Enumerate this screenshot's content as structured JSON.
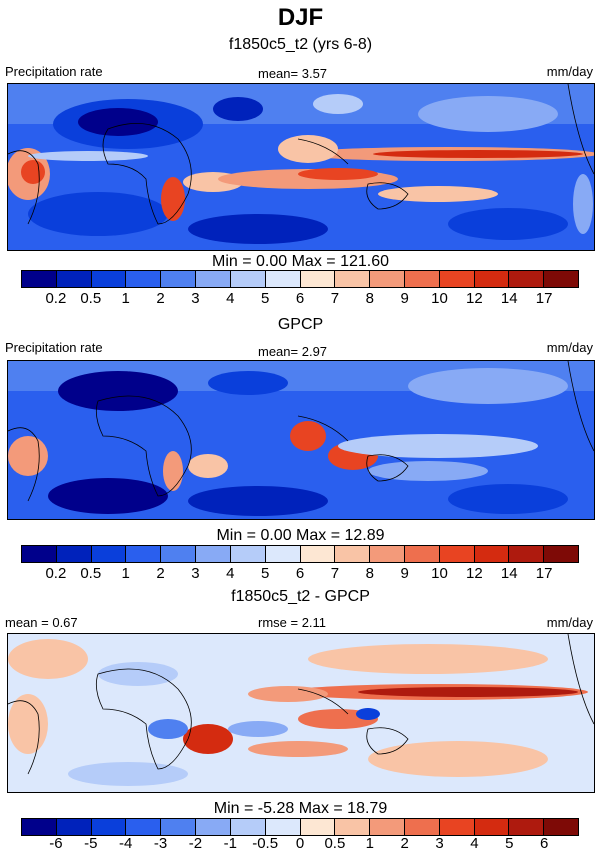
{
  "title": "DJF",
  "panels": [
    {
      "title": "f1850c5_t2 (yrs 6-8)",
      "left_label": "Precipitation rate",
      "center_label": "mean=   3.57",
      "right_label": "mm/day",
      "minmax": "Min =   0.00 Max = 121.60",
      "colorbar": {
        "colors": [
          "#00008b",
          "#0022bb",
          "#0a3fdb",
          "#2a5fee",
          "#4f80f0",
          "#88aaf5",
          "#b5ccf9",
          "#dce8fc",
          "#fde7d3",
          "#f9c4a6",
          "#f39a7a",
          "#ee6f4e",
          "#e84422",
          "#d42b10",
          "#ae1a0e",
          "#7e0a06"
        ],
        "ticks": [
          "0.2",
          "0.5",
          "1",
          "2",
          "3",
          "4",
          "5",
          "6",
          "7",
          "8",
          "9",
          "10",
          "12",
          "14",
          "17"
        ]
      }
    },
    {
      "title": "GPCP",
      "left_label": "Precipitation rate",
      "center_label": "mean=   2.97",
      "right_label": "mm/day",
      "minmax": "Min =   0.00 Max =  12.89",
      "colorbar": {
        "colors": [
          "#00008b",
          "#0022bb",
          "#0a3fdb",
          "#2a5fee",
          "#4f80f0",
          "#88aaf5",
          "#b5ccf9",
          "#dce8fc",
          "#fde7d3",
          "#f9c4a6",
          "#f39a7a",
          "#ee6f4e",
          "#e84422",
          "#d42b10",
          "#ae1a0e",
          "#7e0a06"
        ],
        "ticks": [
          "0.2",
          "0.5",
          "1",
          "2",
          "3",
          "4",
          "5",
          "6",
          "7",
          "8",
          "9",
          "10",
          "12",
          "14",
          "17"
        ]
      }
    },
    {
      "title": "f1850c5_t2 - GPCP",
      "left_label": "mean =   0.67",
      "center_label": "rmse =   2.11",
      "right_label": "mm/day",
      "minmax": "Min =  -5.28 Max =  18.79",
      "colorbar": {
        "colors": [
          "#00008b",
          "#0022bb",
          "#0a3fdb",
          "#2a5fee",
          "#4f80f0",
          "#88aaf5",
          "#b5ccf9",
          "#dce8fc",
          "#fde7d3",
          "#f9c4a6",
          "#f39a7a",
          "#ee6f4e",
          "#e84422",
          "#d42b10",
          "#ae1a0e",
          "#7e0a06"
        ],
        "ticks": [
          "-6",
          "-5",
          "-4",
          "-3",
          "-2",
          "-1",
          "-0.5",
          "0",
          "0.5",
          "1",
          "2",
          "3",
          "4",
          "5",
          "6"
        ]
      }
    }
  ]
}
